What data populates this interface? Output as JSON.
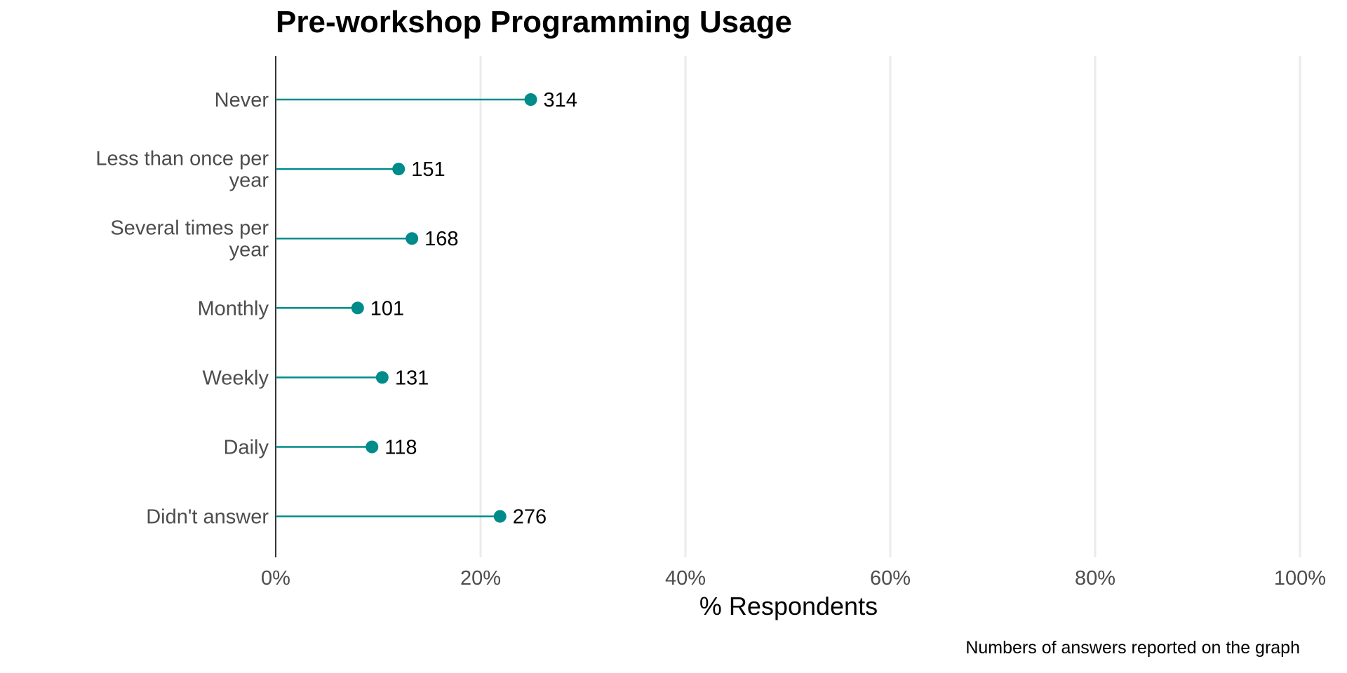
{
  "chart_data": {
    "type": "lollipop",
    "title": "Pre-workshop Programming Usage",
    "xlabel": "% Respondents",
    "ylabel": "",
    "caption": "Numbers of answers reported on the graph",
    "xlim": [
      0,
      100
    ],
    "x_ticks": [
      0,
      20,
      40,
      60,
      80,
      100
    ],
    "x_tick_labels": [
      "0%",
      "20%",
      "40%",
      "60%",
      "80%",
      "100%"
    ],
    "grid": "vertical major",
    "color": "#008b8b",
    "categories": [
      [
        "Never"
      ],
      [
        "Less than once per",
        "year"
      ],
      [
        "Several times per",
        "year"
      ],
      [
        "Monthly"
      ],
      [
        "Weekly"
      ],
      [
        "Daily"
      ],
      [
        "Didn't answer"
      ]
    ],
    "values_percent": [
      24.9,
      12.0,
      13.3,
      8.0,
      10.4,
      9.4,
      21.9
    ],
    "counts": [
      314,
      151,
      168,
      101,
      131,
      118,
      276
    ]
  }
}
